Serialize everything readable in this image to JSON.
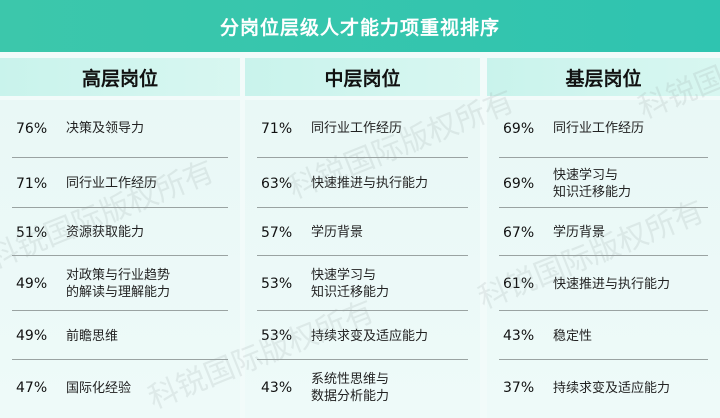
{
  "title": "分岗位层级人才能力项重视排序",
  "watermark": "科锐国际版权所有",
  "colors": {
    "header": "#33c5ad",
    "column_header": "#cdf4ed",
    "body": "#ecf9f7"
  },
  "chart_data": {
    "type": "table",
    "title": "分岗位层级人才能力项重视排序",
    "columns": [
      {
        "name": "高层岗位",
        "rows": [
          {
            "value": "76%",
            "label": "决策及领导力"
          },
          {
            "value": "71%",
            "label": "同行业工作经历"
          },
          {
            "value": "51%",
            "label": "资源获取能力"
          },
          {
            "value": "49%",
            "label": "对政策与行业趋势\n的解读与理解能力"
          },
          {
            "value": "49%",
            "label": "前瞻思维"
          },
          {
            "value": "47%",
            "label": "国际化经验"
          }
        ]
      },
      {
        "name": "中层岗位",
        "rows": [
          {
            "value": "71%",
            "label": "同行业工作经历"
          },
          {
            "value": "63%",
            "label": "快速推进与执行能力"
          },
          {
            "value": "57%",
            "label": "学历背景"
          },
          {
            "value": "53%",
            "label": "快速学习与\n知识迁移能力"
          },
          {
            "value": "53%",
            "label": "持续求变及适应能力"
          },
          {
            "value": "43%",
            "label": "系统性思维与\n数据分析能力"
          }
        ]
      },
      {
        "name": "基层岗位",
        "rows": [
          {
            "value": "69%",
            "label": "同行业工作经历"
          },
          {
            "value": "69%",
            "label": "快速学习与\n知识迁移能力"
          },
          {
            "value": "67%",
            "label": "学历背景"
          },
          {
            "value": "61%",
            "label": "快速推进与执行能力"
          },
          {
            "value": "43%",
            "label": "稳定性"
          },
          {
            "value": "37%",
            "label": "持续求变及适应能力"
          }
        ]
      }
    ]
  }
}
